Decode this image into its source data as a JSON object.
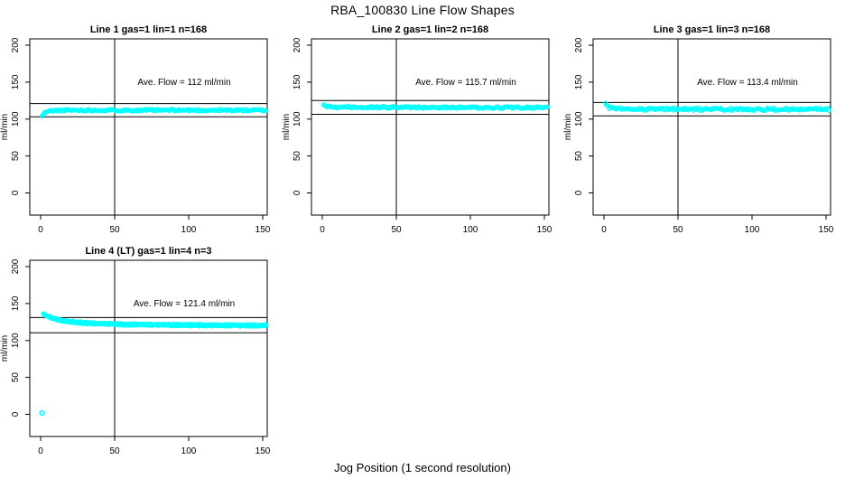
{
  "figure": {
    "title": "RBA_100830  Line Flow Shapes",
    "x_axis_label": "Jog Position (1 second resolution)",
    "y_axis_label": "ml/min"
  },
  "colors": {
    "points": "#00FFFF",
    "axis": "#000000",
    "background": "#FFFFFF"
  },
  "chart_data": [
    {
      "type": "scatter",
      "panel": 1,
      "title": "Line 1 gas=1 lin=1 n=168",
      "annotation": "Ave. Flow =  112  ml/min",
      "ave_flow": 112,
      "n": 168,
      "xlim": [
        0,
        150
      ],
      "ylim": [
        0,
        200
      ],
      "x_ticks": [
        0,
        50,
        100,
        150
      ],
      "y_ticks": [
        0,
        50,
        100,
        150,
        200
      ],
      "vline_x": 50,
      "hlines": [
        121,
        103
      ],
      "trend": [
        [
          1,
          104
        ],
        [
          2,
          107
        ],
        [
          4,
          110
        ],
        [
          8,
          111.5
        ],
        [
          20,
          112
        ],
        [
          152,
          112
        ]
      ],
      "jitter": 1.3,
      "seed": 11,
      "series_count": 1,
      "outliers": []
    },
    {
      "type": "scatter",
      "panel": 2,
      "title": "Line 2 gas=1 lin=2 n=168",
      "annotation": "Ave. Flow =  115.7  ml/min",
      "ave_flow": 115.7,
      "n": 168,
      "xlim": [
        0,
        150
      ],
      "ylim": [
        0,
        200
      ],
      "x_ticks": [
        0,
        50,
        100,
        150
      ],
      "y_ticks": [
        0,
        50,
        100,
        150,
        200
      ],
      "vline_x": 50,
      "hlines": [
        125,
        106.4
      ],
      "trend": [
        [
          1,
          120
        ],
        [
          2,
          118.5
        ],
        [
          4,
          117
        ],
        [
          8,
          116.3
        ],
        [
          20,
          116
        ],
        [
          152,
          115.5
        ]
      ],
      "jitter": 1.3,
      "seed": 22,
      "series_count": 1,
      "outliers": []
    },
    {
      "type": "scatter",
      "panel": 3,
      "title": "Line 3 gas=1 lin=3 n=168",
      "annotation": "Ave. Flow =  113.4  ml/min",
      "ave_flow": 113.4,
      "n": 168,
      "xlim": [
        0,
        150
      ],
      "ylim": [
        0,
        200
      ],
      "x_ticks": [
        0,
        50,
        100,
        150
      ],
      "y_ticks": [
        0,
        50,
        100,
        150,
        200
      ],
      "vline_x": 50,
      "hlines": [
        122.5,
        104.3
      ],
      "trend": [
        [
          1,
          120
        ],
        [
          2,
          117.5
        ],
        [
          4,
          115
        ],
        [
          8,
          114
        ],
        [
          20,
          113.5
        ],
        [
          152,
          113
        ]
      ],
      "jitter": 1.7,
      "seed": 33,
      "series_count": 1,
      "outliers": []
    },
    {
      "type": "scatter",
      "panel": 4,
      "title": "Line 4 (LT) gas=1 lin=4 n=3",
      "annotation": "Ave. Flow =  121.4  ml/min",
      "ave_flow": 121.4,
      "n": 3,
      "xlim": [
        0,
        150
      ],
      "ylim": [
        0,
        200
      ],
      "x_ticks": [
        0,
        50,
        100,
        150
      ],
      "y_ticks": [
        0,
        50,
        100,
        150,
        200
      ],
      "vline_x": 50,
      "hlines": [
        131,
        110.5
      ],
      "trend": [
        [
          2,
          136
        ],
        [
          4,
          133.5
        ],
        [
          7,
          131
        ],
        [
          12,
          128
        ],
        [
          20,
          125.5
        ],
        [
          35,
          123
        ],
        [
          60,
          121.7
        ],
        [
          100,
          120.8
        ],
        [
          152,
          120.3
        ]
      ],
      "jitter": 0.8,
      "seed": 44,
      "series_count": 3,
      "outliers": [
        [
          1,
          2
        ]
      ]
    }
  ]
}
